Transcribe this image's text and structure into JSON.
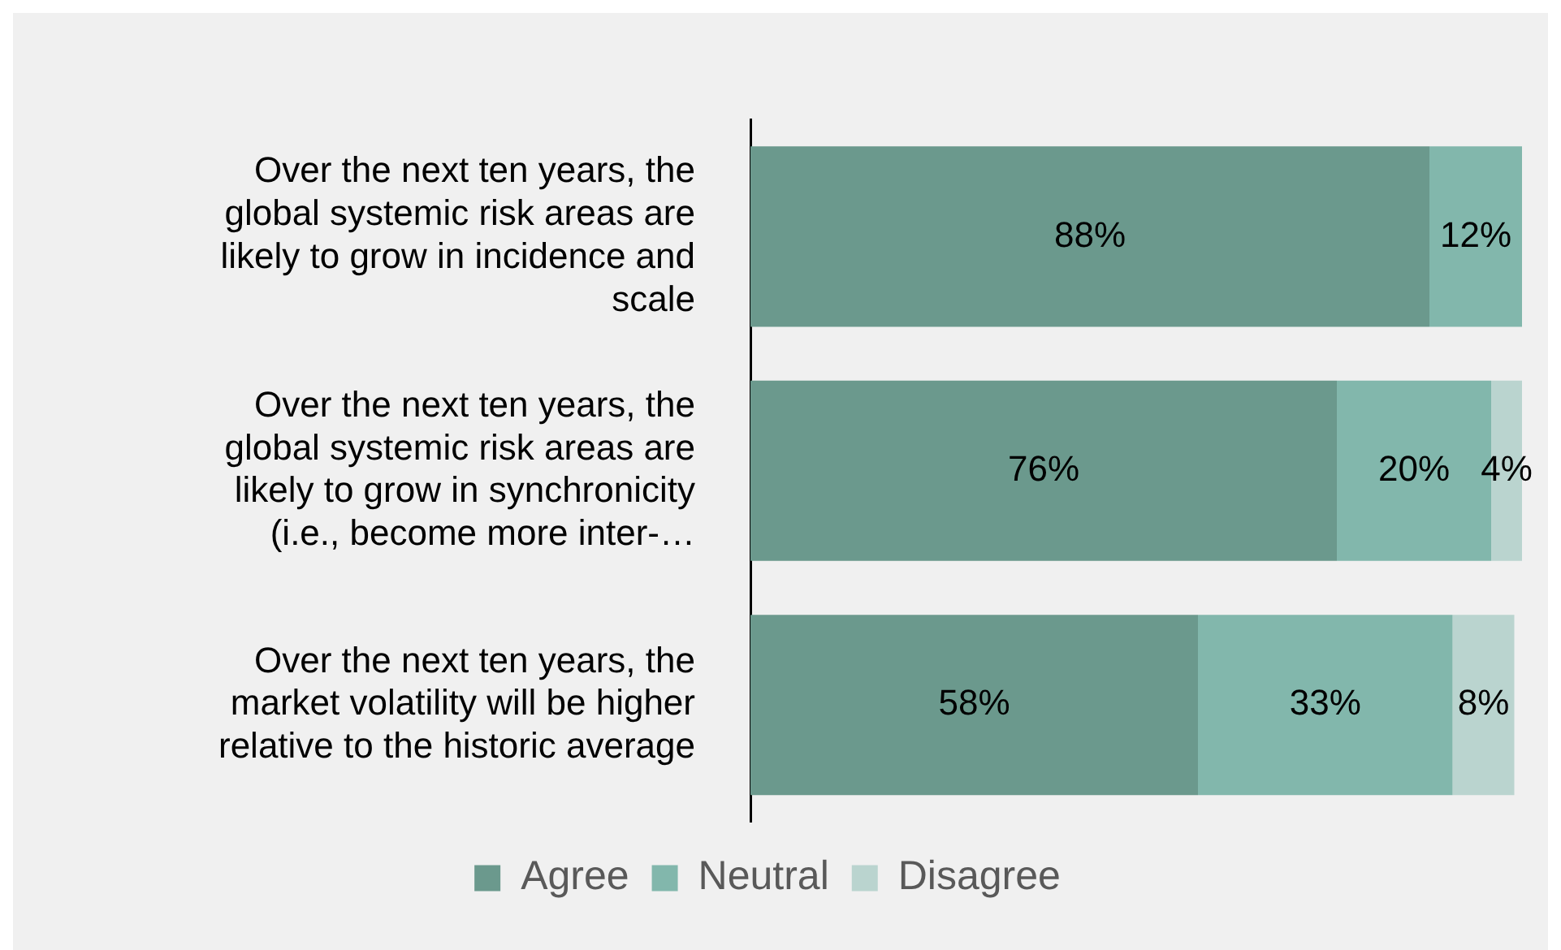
{
  "chart_data": {
    "type": "bar",
    "orientation": "horizontal",
    "stacked": true,
    "categories": [
      "Over the next ten years, the global systemic risk areas are likely to grow in incidence and scale",
      "Over the next ten years, the global systemic risk areas are likely to grow in synchronicity (i.e., become more inter-…",
      "Over the next ten years, the market volatility will be higher relative to the historic average"
    ],
    "series": [
      {
        "name": "Agree",
        "color": "#6b998d",
        "values": [
          88,
          76,
          58
        ],
        "value_labels": [
          "88%",
          "76%",
          "58%"
        ]
      },
      {
        "name": "Neutral",
        "color": "#82b7ac",
        "values": [
          12,
          20,
          33
        ],
        "value_labels": [
          "12%",
          "20%",
          "33%"
        ]
      },
      {
        "name": "Disagree",
        "color": "#bad4cf",
        "values": [
          null,
          4,
          8
        ],
        "value_labels": [
          null,
          "4%",
          "8%"
        ]
      }
    ],
    "legend": "bottom",
    "grid": false,
    "tick_labels": "y"
  }
}
